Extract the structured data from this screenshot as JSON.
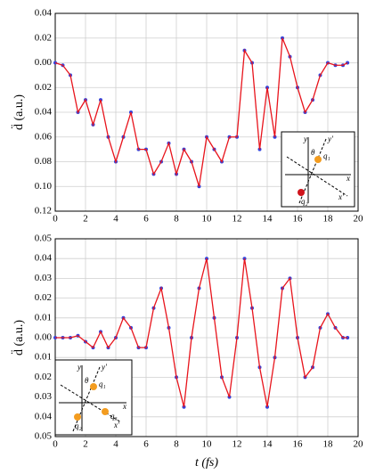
{
  "chart_data": [
    {
      "type": "line",
      "ylabel": "d̈ (a.u.)",
      "x": [
        0,
        0.5,
        1,
        1.5,
        2,
        2.5,
        3,
        3.5,
        4,
        4.5,
        5,
        5.5,
        6,
        6.5,
        7,
        7.5,
        8,
        8.5,
        9,
        9.5,
        10,
        10.5,
        11,
        11.5,
        12,
        12.5,
        13,
        13.5,
        14,
        14.5,
        15,
        15.5,
        16,
        16.5,
        17,
        17.5,
        18,
        18.5,
        19,
        19.3
      ],
      "series": [
        {
          "color": "#e8141c",
          "marker_color": "#3344dd",
          "values": [
            0,
            -0.002,
            -0.01,
            -0.04,
            -0.03,
            -0.05,
            -0.03,
            -0.06,
            -0.08,
            -0.06,
            -0.04,
            -0.07,
            -0.07,
            -0.09,
            -0.08,
            -0.065,
            -0.09,
            -0.07,
            -0.08,
            -0.1,
            -0.06,
            -0.07,
            -0.08,
            -0.06,
            -0.06,
            0.01,
            0,
            -0.07,
            -0.02,
            -0.06,
            0.02,
            0.005,
            -0.02,
            -0.04,
            -0.03,
            -0.01,
            0,
            -0.002,
            -0.002,
            0
          ]
        }
      ],
      "xlim": [
        0,
        20
      ],
      "xticks": [
        0,
        2,
        4,
        6,
        8,
        10,
        12,
        14,
        16,
        18,
        20
      ],
      "ylim": [
        -0.12,
        0.04
      ],
      "yticks": [
        {
          "value": 0.04,
          "label": "0.04"
        },
        {
          "value": 0.02,
          "label": "0.02"
        },
        {
          "value": 0,
          "label": "0.00"
        },
        {
          "value": -0.02,
          "label": "0.02"
        },
        {
          "value": -0.04,
          "label": "0.04"
        },
        {
          "value": -0.06,
          "label": "0.06"
        },
        {
          "value": -0.08,
          "label": "0.08"
        },
        {
          "value": -0.1,
          "label": "0.10"
        },
        {
          "value": -0.12,
          "label": "0.12"
        }
      ],
      "grid": true,
      "inset": {
        "y": "y",
        "y_prime": "y'",
        "theta": "θ",
        "q1": "q₁",
        "q2": "q₂",
        "x": "x",
        "x_prime": "x'"
      }
    },
    {
      "type": "line",
      "ylabel": "d̈ (a.u.)",
      "xlabel": "t (fs)",
      "x": [
        0,
        0.5,
        1,
        1.5,
        2,
        2.5,
        3,
        3.5,
        4,
        4.5,
        5,
        5.5,
        6,
        6.5,
        7,
        7.5,
        8,
        8.5,
        9,
        9.5,
        10,
        10.5,
        11,
        11.5,
        12,
        12.5,
        13,
        13.5,
        14,
        14.5,
        15,
        15.5,
        16,
        16.5,
        17,
        17.5,
        18,
        18.5,
        19,
        19.3
      ],
      "series": [
        {
          "color": "#e8141c",
          "marker_color": "#3344dd",
          "values": [
            0,
            0,
            0,
            0.001,
            -0.002,
            -0.005,
            0.003,
            -0.005,
            0,
            0.01,
            0.005,
            -0.005,
            -0.005,
            0.015,
            0.025,
            0.005,
            -0.02,
            -0.035,
            0,
            0.025,
            0.04,
            0.01,
            -0.02,
            -0.03,
            0,
            0.04,
            0.015,
            -0.015,
            -0.035,
            -0.01,
            0.025,
            0.03,
            0,
            -0.02,
            -0.015,
            0.005,
            0.012,
            0.005,
            0,
            0
          ]
        }
      ],
      "xlim": [
        0,
        20
      ],
      "xticks": [
        0,
        2,
        4,
        6,
        8,
        10,
        12,
        14,
        16,
        18,
        20
      ],
      "ylim": [
        -0.05,
        0.05
      ],
      "yticks": [
        {
          "value": 0.05,
          "label": "0.05"
        },
        {
          "value": 0.04,
          "label": "0.04"
        },
        {
          "value": 0.03,
          "label": "0.03"
        },
        {
          "value": 0.02,
          "label": "0.02"
        },
        {
          "value": 0.01,
          "label": "0.01"
        },
        {
          "value": 0,
          "label": "0.00"
        },
        {
          "value": -0.01,
          "label": "0.01"
        },
        {
          "value": -0.02,
          "label": "0.02"
        },
        {
          "value": -0.03,
          "label": "0.03"
        },
        {
          "value": -0.04,
          "label": "0.04"
        },
        {
          "value": -0.05,
          "label": "0.05"
        }
      ],
      "grid": true,
      "inset": {
        "y": "y",
        "y_prime": "y'",
        "theta": "θ",
        "q1": "q₁",
        "q2": "q₂",
        "q3": "q₃",
        "x": "x",
        "x_prime": "x'"
      }
    }
  ]
}
